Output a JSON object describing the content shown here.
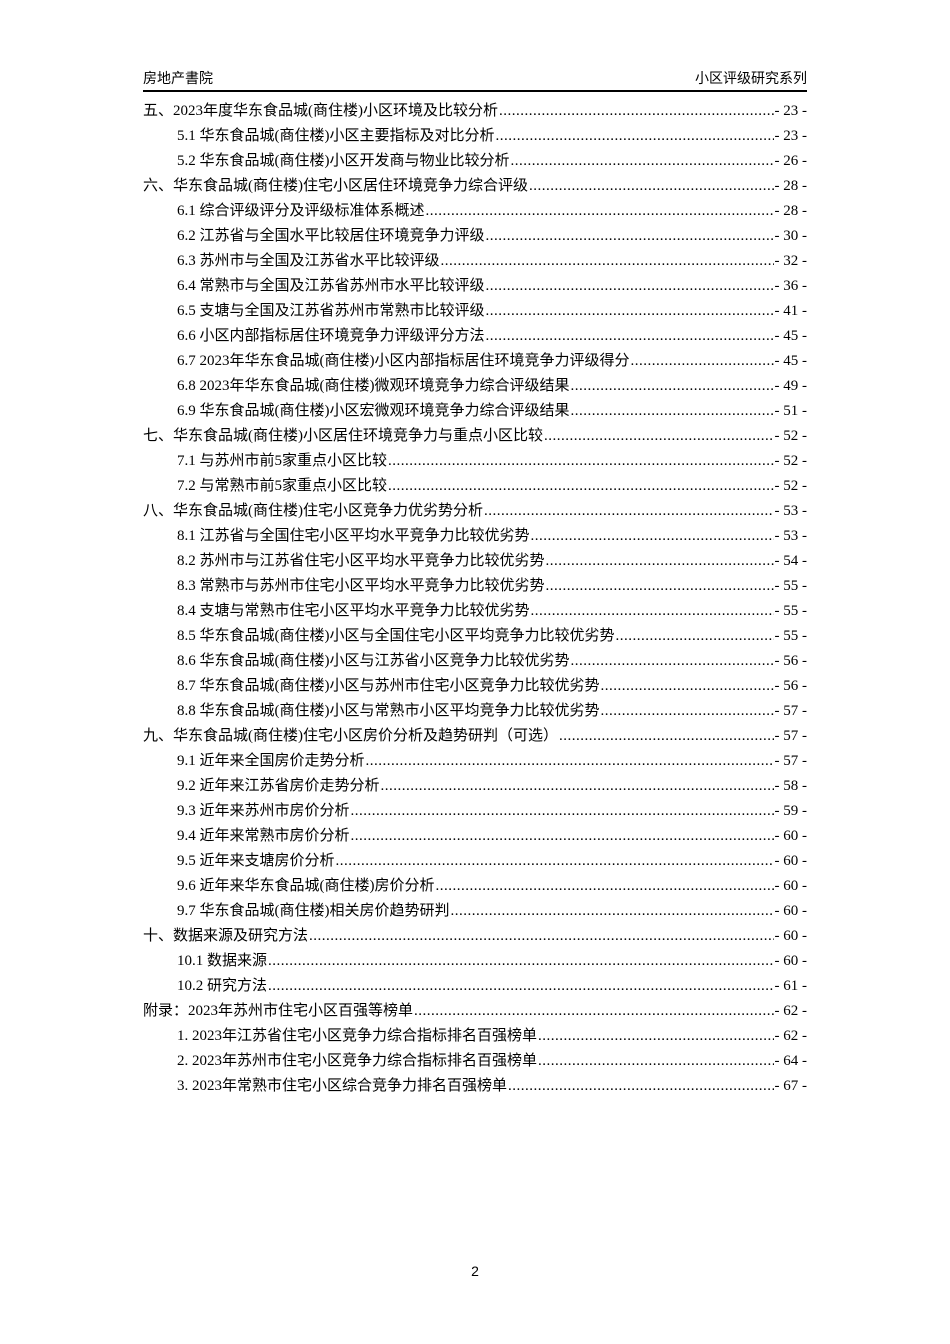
{
  "header": {
    "left": "房地产書院",
    "right": "小区评级研究系列"
  },
  "toc": [
    {
      "level": 1,
      "title": "五、2023年度华东食品城(商住楼)小区环境及比较分析",
      "page": "- 23 -"
    },
    {
      "level": 2,
      "title": "5.1 华东食品城(商住楼)小区主要指标及对比分析",
      "page": "- 23 -"
    },
    {
      "level": 2,
      "title": "5.2 华东食品城(商住楼)小区开发商与物业比较分析",
      "page": "- 26 -"
    },
    {
      "level": 1,
      "title": "六、华东食品城(商住楼)住宅小区居住环境竞争力综合评级",
      "page": "- 28 -"
    },
    {
      "level": 2,
      "title": "6.1 综合评级评分及评级标准体系概述",
      "page": "- 28 -"
    },
    {
      "level": 2,
      "title": "6.2 江苏省与全国水平比较居住环境竞争力评级",
      "page": "- 30 -"
    },
    {
      "level": 2,
      "title": "6.3 苏州市与全国及江苏省水平比较评级",
      "page": "- 32 -"
    },
    {
      "level": 2,
      "title": "6.4 常熟市与全国及江苏省苏州市水平比较评级",
      "page": "- 36 -"
    },
    {
      "level": 2,
      "title": "6.5 支塘与全国及江苏省苏州市常熟市比较评级",
      "page": "- 41 -"
    },
    {
      "level": 2,
      "title": "6.6 小区内部指标居住环境竞争力评级评分方法",
      "page": "- 45 -"
    },
    {
      "level": 2,
      "title": "6.7 2023年华东食品城(商住楼)小区内部指标居住环境竞争力评级得分",
      "page": "- 45 -"
    },
    {
      "level": 2,
      "title": "6.8 2023年华东食品城(商住楼)微观环境竞争力综合评级结果",
      "page": "- 49 -"
    },
    {
      "level": 2,
      "title": "6.9 华东食品城(商住楼)小区宏微观环境竞争力综合评级结果",
      "page": "- 51 -"
    },
    {
      "level": 1,
      "title": "七、华东食品城(商住楼)小区居住环境竞争力与重点小区比较",
      "page": "- 52 -"
    },
    {
      "level": 2,
      "title": "7.1 与苏州市前5家重点小区比较",
      "page": "- 52 -"
    },
    {
      "level": 2,
      "title": "7.2 与常熟市前5家重点小区比较",
      "page": "- 52 -"
    },
    {
      "level": 1,
      "title": "八、华东食品城(商住楼)住宅小区竞争力优劣势分析",
      "page": "- 53 -"
    },
    {
      "level": 2,
      "title": "8.1 江苏省与全国住宅小区平均水平竞争力比较优劣势",
      "page": "- 53 -"
    },
    {
      "level": 2,
      "title": "8.2 苏州市与江苏省住宅小区平均水平竞争力比较优劣势",
      "page": "- 54 -"
    },
    {
      "level": 2,
      "title": "8.3 常熟市与苏州市住宅小区平均水平竞争力比较优劣势",
      "page": "- 55 -"
    },
    {
      "level": 2,
      "title": "8.4 支塘与常熟市住宅小区平均水平竞争力比较优劣势",
      "page": "- 55 -"
    },
    {
      "level": 2,
      "title": "8.5 华东食品城(商住楼)小区与全国住宅小区平均竞争力比较优劣势",
      "page": "- 55 -"
    },
    {
      "level": 2,
      "title": "8.6 华东食品城(商住楼)小区与江苏省小区竞争力比较优劣势",
      "page": "- 56 -"
    },
    {
      "level": 2,
      "title": "8.7 华东食品城(商住楼)小区与苏州市住宅小区竞争力比较优劣势",
      "page": "- 56 -"
    },
    {
      "level": 2,
      "title": "8.8 华东食品城(商住楼)小区与常熟市小区平均竞争力比较优劣势",
      "page": "- 57 -"
    },
    {
      "level": 1,
      "title": "九、华东食品城(商住楼)住宅小区房价分析及趋势研判（可选）",
      "page": "- 57 -"
    },
    {
      "level": 2,
      "title": "9.1 近年来全国房价走势分析",
      "page": "- 57 -"
    },
    {
      "level": 2,
      "title": "9.2 近年来江苏省房价走势分析",
      "page": "- 58 -"
    },
    {
      "level": 2,
      "title": "9.3 近年来苏州市房价分析",
      "page": "- 59 -"
    },
    {
      "level": 2,
      "title": "9.4 近年来常熟市房价分析",
      "page": "- 60 -"
    },
    {
      "level": 2,
      "title": "9.5 近年来支塘房价分析",
      "page": "- 60 -"
    },
    {
      "level": 2,
      "title": "9.6 近年来华东食品城(商住楼)房价分析",
      "page": "- 60 -"
    },
    {
      "level": 2,
      "title": "9.7 华东食品城(商住楼)相关房价趋势研判",
      "page": "- 60 -"
    },
    {
      "level": 1,
      "title": "十、数据来源及研究方法",
      "page": "- 60 -"
    },
    {
      "level": 2,
      "title": "10.1 数据来源",
      "page": "- 60 -"
    },
    {
      "level": 2,
      "title": "10.2 研究方法",
      "page": "- 61 -"
    },
    {
      "level": 1,
      "title": "附录：2023年苏州市住宅小区百强等榜单",
      "page": "- 62 -"
    },
    {
      "level": 2,
      "title": "1. 2023年江苏省住宅小区竞争力综合指标排名百强榜单",
      "page": "- 62 -"
    },
    {
      "level": 2,
      "title": "2. 2023年苏州市住宅小区竞争力综合指标排名百强榜单",
      "page": "- 64 -"
    },
    {
      "level": 2,
      "title": "3. 2023年常熟市住宅小区综合竞争力排名百强榜单",
      "page": "- 67 -"
    }
  ],
  "footer": {
    "page_number": "2"
  }
}
